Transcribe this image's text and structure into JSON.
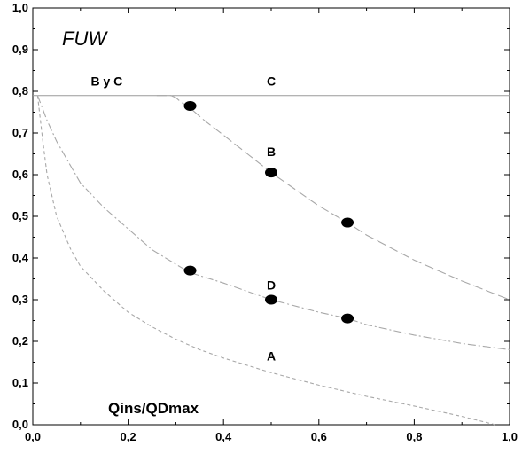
{
  "chart_data": {
    "type": "line",
    "title": "FUW",
    "xlabel": "Qins/QDmax",
    "ylabel": "",
    "xlim": [
      0,
      1
    ],
    "ylim": [
      0,
      1
    ],
    "x_ticks": [
      "0,0",
      "0,2",
      "0,4",
      "0,6",
      "0,8",
      "1,0"
    ],
    "y_ticks": [
      "0,0",
      "0,1",
      "0,2",
      "0,3",
      "0,4",
      "0,5",
      "0,6",
      "0,7",
      "0,8",
      "0,9",
      "1,0"
    ],
    "grid": false,
    "series": [
      {
        "id": "cap",
        "style": "solid",
        "x": [
          0.0,
          1.0
        ],
        "y": [
          0.79,
          0.79
        ]
      },
      {
        "id": "A",
        "style": "dashed",
        "x": [
          0.01,
          0.02,
          0.03,
          0.05,
          0.08,
          0.1,
          0.15,
          0.2,
          0.25,
          0.3,
          0.35,
          0.4,
          0.5,
          0.6,
          0.7,
          0.8,
          0.9,
          0.97
        ],
        "y": [
          0.79,
          0.69,
          0.6,
          0.5,
          0.42,
          0.38,
          0.32,
          0.27,
          0.235,
          0.205,
          0.18,
          0.16,
          0.125,
          0.095,
          0.068,
          0.045,
          0.02,
          0.0
        ]
      },
      {
        "id": "D",
        "style": "dash-dot",
        "x": [
          0.01,
          0.03,
          0.05,
          0.08,
          0.1,
          0.15,
          0.2,
          0.25,
          0.3,
          0.33,
          0.4,
          0.5,
          0.6,
          0.66,
          0.7,
          0.8,
          0.9,
          1.0
        ],
        "y": [
          0.79,
          0.73,
          0.68,
          0.62,
          0.58,
          0.52,
          0.47,
          0.42,
          0.385,
          0.365,
          0.34,
          0.3,
          0.27,
          0.255,
          0.24,
          0.215,
          0.195,
          0.18
        ]
      },
      {
        "id": "B",
        "style": "long-dash",
        "x": [
          0.29,
          0.3,
          0.31,
          0.33,
          0.36,
          0.4,
          0.45,
          0.5,
          0.55,
          0.6,
          0.66,
          0.7,
          0.8,
          0.9,
          1.0
        ],
        "y": [
          0.79,
          0.785,
          0.775,
          0.76,
          0.73,
          0.695,
          0.65,
          0.605,
          0.565,
          0.525,
          0.485,
          0.455,
          0.395,
          0.345,
          0.3
        ]
      },
      {
        "id": "B-lead",
        "style": "long-dash",
        "x": [
          0.26,
          0.29
        ],
        "y": [
          0.79,
          0.79
        ]
      }
    ],
    "points": [
      {
        "x": 0.33,
        "y": 0.765
      },
      {
        "x": 0.5,
        "y": 0.605
      },
      {
        "x": 0.66,
        "y": 0.485
      },
      {
        "x": 0.33,
        "y": 0.37
      },
      {
        "x": 0.5,
        "y": 0.3
      },
      {
        "x": 0.66,
        "y": 0.255
      }
    ],
    "annotations": [
      {
        "text": "B y C",
        "x": 0.155,
        "y": 0.825
      },
      {
        "text": "C",
        "x": 0.5,
        "y": 0.825
      },
      {
        "text": "B",
        "x": 0.5,
        "y": 0.655
      },
      {
        "text": "D",
        "x": 0.5,
        "y": 0.335
      },
      {
        "text": "A",
        "x": 0.5,
        "y": 0.165
      }
    ]
  }
}
